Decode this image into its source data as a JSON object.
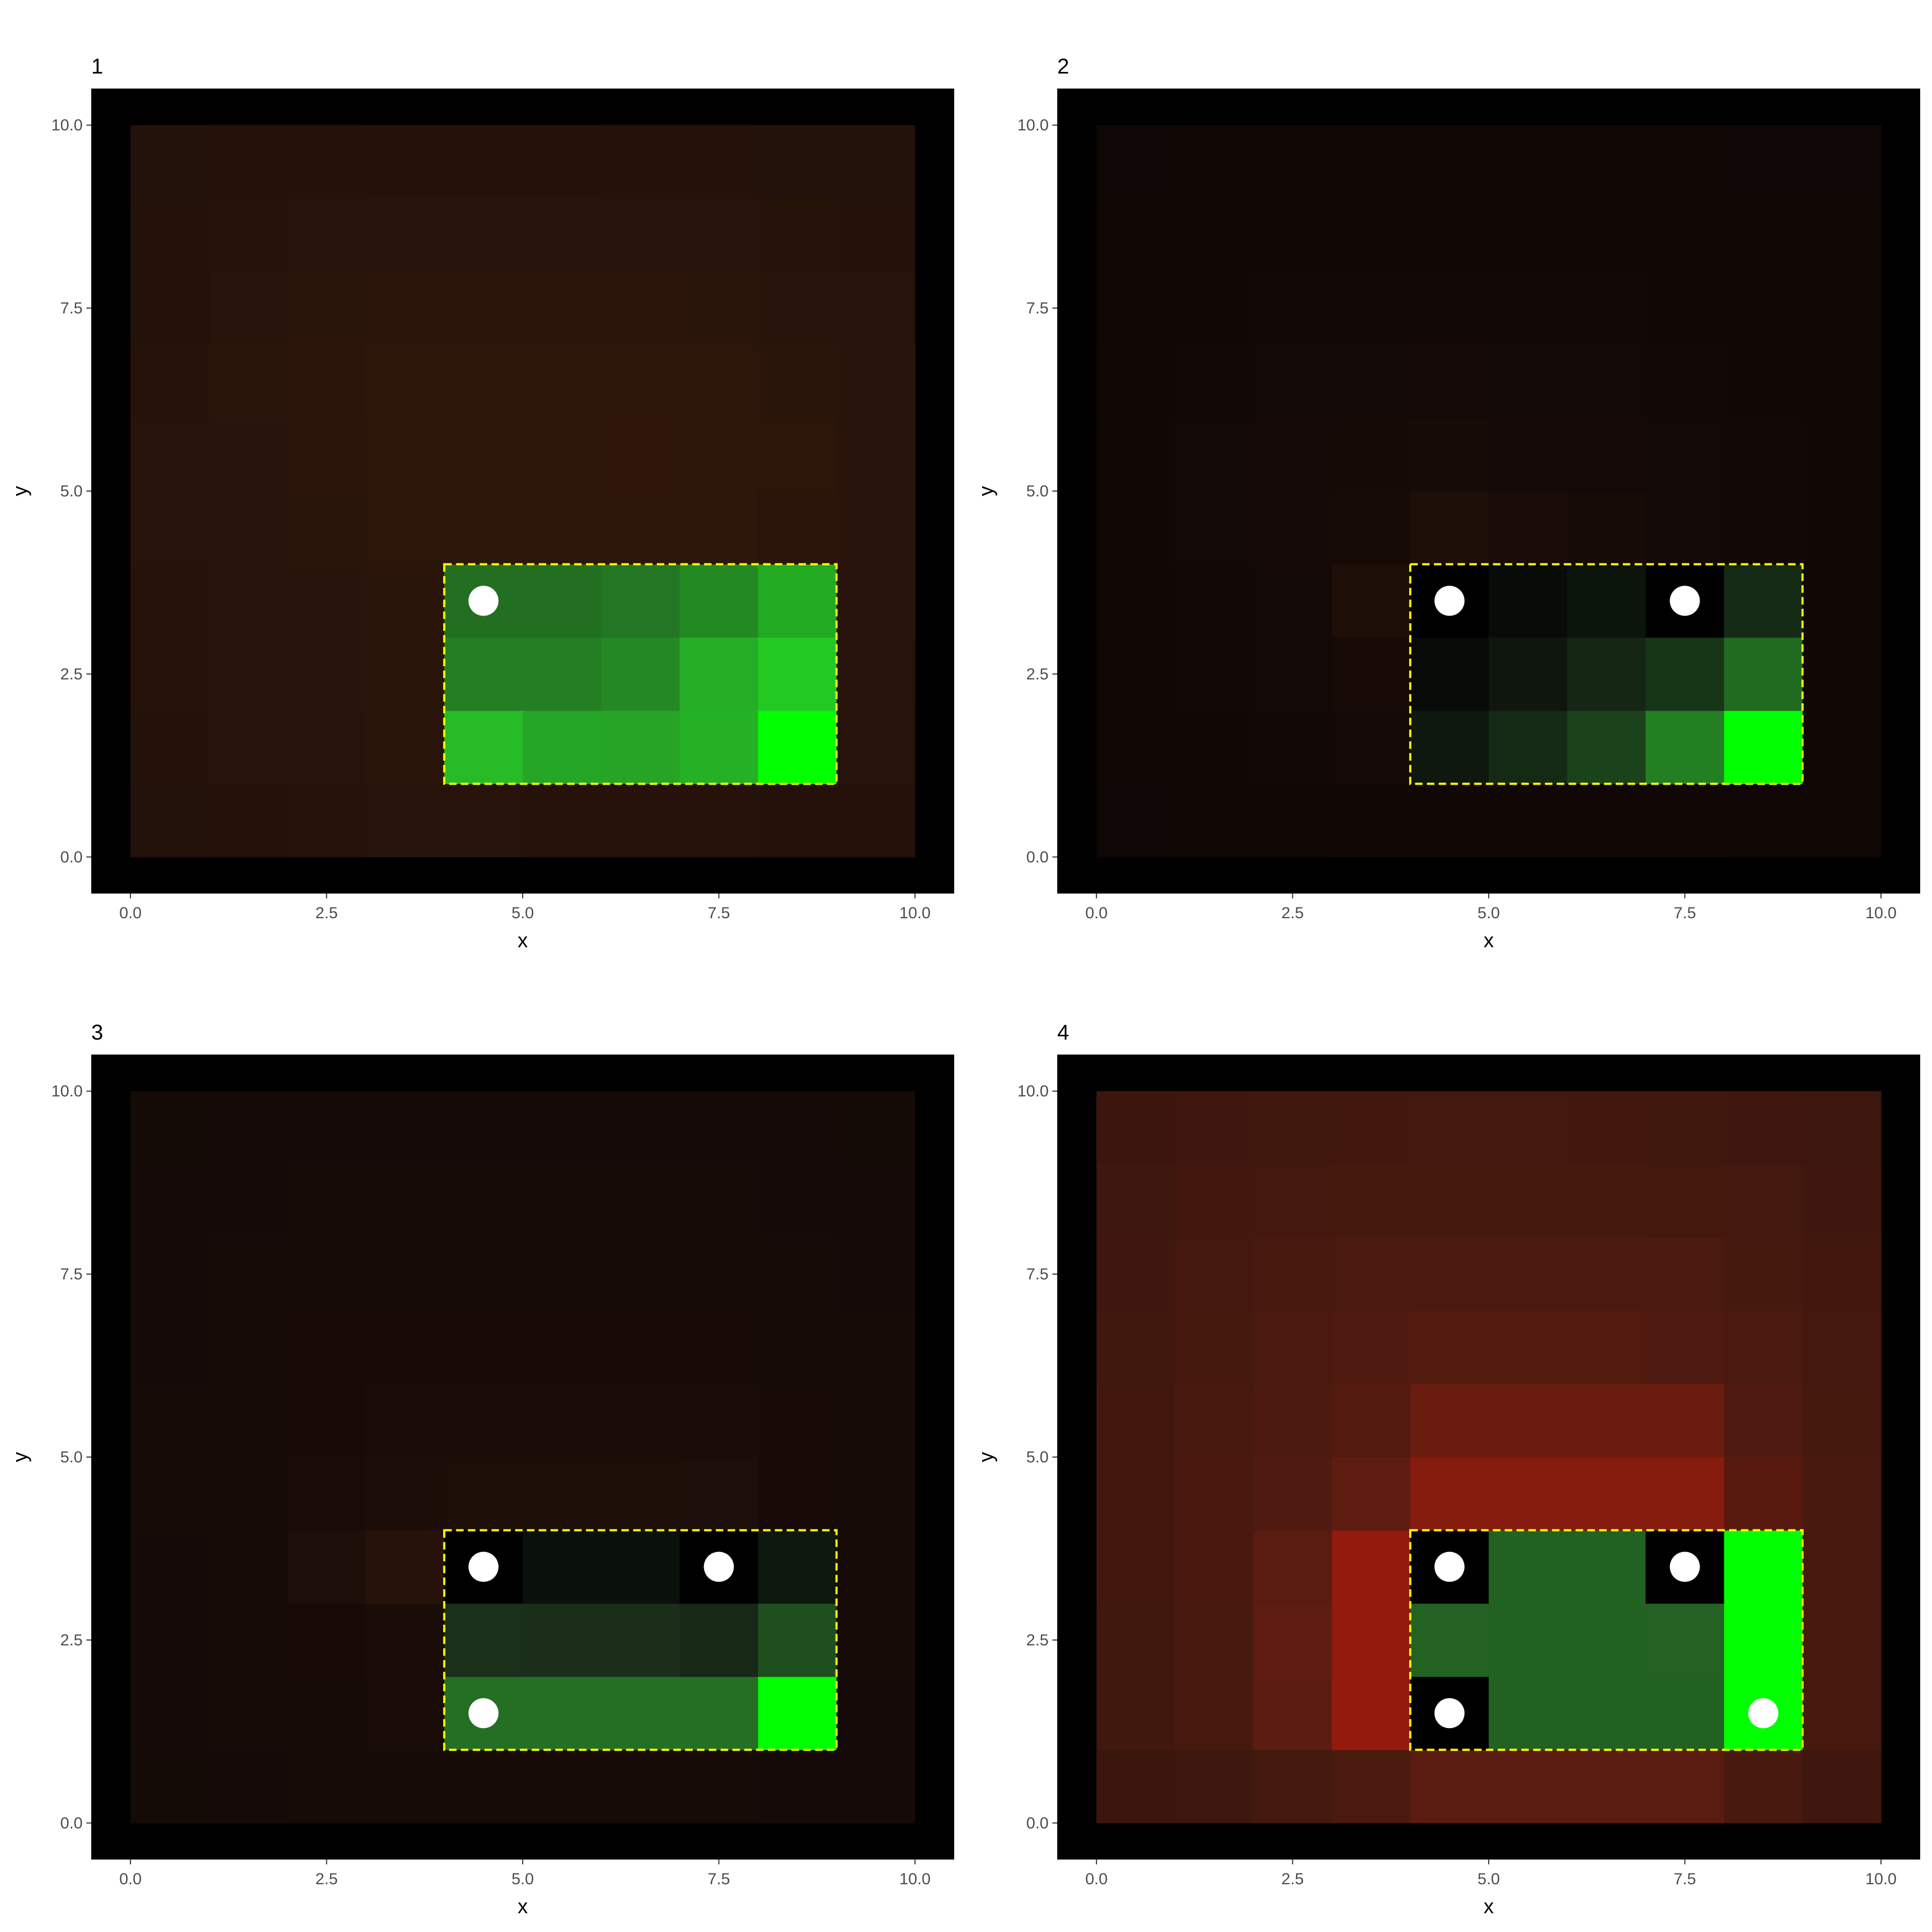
{
  "figure": {
    "background": "#ffffff",
    "panel_background": "#000000"
  },
  "chart_data": [
    {
      "type": "heatmap",
      "title": "1",
      "xlabel": "x",
      "ylabel": "y",
      "xlim": [
        -0.5,
        10.5
      ],
      "ylim": [
        -0.5,
        10.5
      ],
      "xticks": [
        "0.0",
        "2.5",
        "5.0",
        "7.5",
        "10.0"
      ],
      "yticks": [
        "0.0",
        "2.5",
        "5.0",
        "7.5",
        "10.0"
      ],
      "grid": false,
      "cell_colors": [
        [
          "#22110a",
          "#24120a",
          "#25130a",
          "#26130a",
          "#26130a",
          "#25130a",
          "#25120a",
          "#25130a",
          "#24120a",
          "#24120a"
        ],
        [
          "#24120a",
          "#26130a",
          "#27130a",
          "#2a150a",
          "#27bb27",
          "#26a626",
          "#26a426",
          "#25b125",
          "#00ff00",
          "#26130a"
        ],
        [
          "#25120a",
          "#27130a",
          "#28140a",
          "#2a150a",
          "#247e24",
          "#247f24",
          "#248924",
          "#25ad25",
          "#22c922",
          "#27130a"
        ],
        [
          "#25130a",
          "#27140a",
          "#28140a",
          "#2a150a",
          "#226f22",
          "#226f22",
          "#237623",
          "#238a23",
          "#22aa22",
          "#28140a"
        ],
        [
          "#26130a",
          "#27140a",
          "#29150a",
          "#2c160a",
          "#2d160a",
          "#2d160a",
          "#2d160a",
          "#2d160a",
          "#2b150a",
          "#28140a"
        ],
        [
          "#26130a",
          "#28140a",
          "#2b150a",
          "#2c160a",
          "#2d160a",
          "#2d160a",
          "#2e170a",
          "#2d160a",
          "#2c160a",
          "#28140a"
        ],
        [
          "#25130a",
          "#29150a",
          "#2b150a",
          "#2d160a",
          "#2d160a",
          "#2d160a",
          "#2d160a",
          "#2c160a",
          "#2a150a",
          "#27140a"
        ],
        [
          "#24120a",
          "#27140a",
          "#2a150a",
          "#2b150a",
          "#2b150a",
          "#2b150a",
          "#2b150a",
          "#2a150a",
          "#28140a",
          "#26130a"
        ],
        [
          "#24120a",
          "#25130a",
          "#26130a",
          "#27140a",
          "#28140a",
          "#28140a",
          "#27140a",
          "#26130a",
          "#25130a",
          "#24120a"
        ],
        [
          "#22110a",
          "#23110a",
          "#23110a",
          "#24120a",
          "#24120a",
          "#24120a",
          "#23110a",
          "#23110a",
          "#22110a",
          "#22110a"
        ]
      ],
      "highlight": {
        "x0": 4,
        "x1": 9,
        "y0": 1,
        "y1": 4,
        "color": "#ffff00"
      },
      "points": [
        {
          "x": 4.5,
          "y": 3.5
        }
      ]
    },
    {
      "type": "heatmap",
      "title": "2",
      "xlabel": "x",
      "ylabel": "y",
      "xlim": [
        -0.5,
        10.5
      ],
      "ylim": [
        -0.5,
        10.5
      ],
      "xticks": [
        "0.0",
        "2.5",
        "5.0",
        "7.5",
        "10.0"
      ],
      "yticks": [
        "0.0",
        "2.5",
        "5.0",
        "7.5",
        "10.0"
      ],
      "grid": false,
      "cell_colors": [
        [
          "#0f0705",
          "#100705",
          "#100705",
          "#110806",
          "#110806",
          "#110806",
          "#110806",
          "#110806",
          "#100705",
          "#100705"
        ],
        [
          "#100705",
          "#110806",
          "#120806",
          "#140906",
          "#0e180e",
          "#142a14",
          "#1b431b",
          "#228022",
          "#00ff00",
          "#110806"
        ],
        [
          "#100705",
          "#120806",
          "#130906",
          "#180b07",
          "#070a07",
          "#0e160e",
          "#152615",
          "#163616",
          "#216b21",
          "#110806"
        ],
        [
          "#110806",
          "#120806",
          "#130906",
          "#1d0e08",
          "#000000",
          "#070c07",
          "#0c150c",
          "#000000",
          "#142a14",
          "#110806"
        ],
        [
          "#110806",
          "#130906",
          "#150a07",
          "#170b07",
          "#1e0e08",
          "#190c07",
          "#170b07",
          "#130906",
          "#120806",
          "#110806"
        ],
        [
          "#110806",
          "#130906",
          "#140906",
          "#160a07",
          "#170b07",
          "#150a07",
          "#140906",
          "#130906",
          "#120806",
          "#110806"
        ],
        [
          "#110806",
          "#120806",
          "#130906",
          "#130906",
          "#140906",
          "#130906",
          "#130906",
          "#120806",
          "#110806",
          "#100705"
        ],
        [
          "#100705",
          "#110806",
          "#120806",
          "#120806",
          "#120806",
          "#120806",
          "#120806",
          "#110806",
          "#110806",
          "#100705"
        ],
        [
          "#100705",
          "#110806",
          "#110806",
          "#110806",
          "#110806",
          "#110806",
          "#110806",
          "#110806",
          "#100705",
          "#100705"
        ],
        [
          "#0f0705",
          "#100705",
          "#100705",
          "#100705",
          "#100705",
          "#100705",
          "#100705",
          "#100705",
          "#0f0705",
          "#0f0705"
        ]
      ],
      "highlight": {
        "x0": 4,
        "x1": 9,
        "y0": 1,
        "y1": 4,
        "color": "#ffff00"
      },
      "points": [
        {
          "x": 4.5,
          "y": 3.5
        },
        {
          "x": 7.5,
          "y": 3.5
        }
      ]
    },
    {
      "type": "heatmap",
      "title": "3",
      "xlabel": "x",
      "ylabel": "y",
      "xlim": [
        -0.5,
        10.5
      ],
      "ylim": [
        -0.5,
        10.5
      ],
      "xticks": [
        "0.0",
        "2.5",
        "5.0",
        "7.5",
        "10.0"
      ],
      "yticks": [
        "0.0",
        "2.5",
        "5.0",
        "7.5",
        "10.0"
      ],
      "grid": false,
      "cell_colors": [
        [
          "#140a06",
          "#150a07",
          "#160b07",
          "#160b07",
          "#170b07",
          "#170b07",
          "#170b07",
          "#160b07",
          "#150a07",
          "#150a07"
        ],
        [
          "#150a07",
          "#160b07",
          "#170b07",
          "#190c07",
          "#236f23",
          "#246f24",
          "#246f24",
          "#246f24",
          "#00ff00",
          "#150a07"
        ],
        [
          "#150a07",
          "#160b07",
          "#180b07",
          "#1a0d08",
          "#1a301a",
          "#1a2e1a",
          "#1a2e1a",
          "#172817",
          "#1f4f1f",
          "#160b07"
        ],
        [
          "#150a07",
          "#170b07",
          "#1c0e08",
          "#261209",
          "#000000",
          "#0a110a",
          "#0a110a",
          "#000000",
          "#0e180e",
          "#160b07"
        ],
        [
          "#160b07",
          "#170b07",
          "#190c07",
          "#1b0d08",
          "#1e0e08",
          "#1e0e08",
          "#1e0e08",
          "#1c0e08",
          "#180b07",
          "#170b07"
        ],
        [
          "#160b07",
          "#170b07",
          "#180b07",
          "#1a0d08",
          "#1a0d08",
          "#1a0d08",
          "#1a0d08",
          "#190c07",
          "#180b07",
          "#170b07"
        ],
        [
          "#150a07",
          "#170b07",
          "#180b07",
          "#180b07",
          "#180b07",
          "#180b07",
          "#180b07",
          "#180b07",
          "#170b07",
          "#160b07"
        ],
        [
          "#150a07",
          "#160b07",
          "#170b07",
          "#170b07",
          "#170b07",
          "#170b07",
          "#170b07",
          "#170b07",
          "#160b07",
          "#150a07"
        ],
        [
          "#150a07",
          "#150a07",
          "#160b07",
          "#160b07",
          "#160b07",
          "#160b07",
          "#160b07",
          "#160b07",
          "#150a07",
          "#150a07"
        ],
        [
          "#140a06",
          "#150a07",
          "#150a07",
          "#150a07",
          "#150a07",
          "#150a07",
          "#150a07",
          "#150a07",
          "#150a07",
          "#140a06"
        ]
      ],
      "highlight": {
        "x0": 4,
        "x1": 9,
        "y0": 1,
        "y1": 4,
        "color": "#ffff00"
      },
      "points": [
        {
          "x": 4.5,
          "y": 3.5
        },
        {
          "x": 7.5,
          "y": 3.5
        },
        {
          "x": 4.5,
          "y": 1.5
        }
      ]
    },
    {
      "type": "heatmap",
      "title": "4",
      "xlabel": "x",
      "ylabel": "y",
      "xlim": [
        -0.5,
        10.5
      ],
      "ylim": [
        -0.5,
        10.5
      ],
      "xticks": [
        "0.0",
        "2.5",
        "5.0",
        "7.5",
        "10.0"
      ],
      "yticks": [
        "0.0",
        "2.5",
        "5.0",
        "7.5",
        "10.0"
      ],
      "grid": false,
      "cell_colors": [
        [
          "#3b160d",
          "#3e170e",
          "#43180e",
          "#4a1a0f",
          "#5a1c10",
          "#5a1c10",
          "#5a1c10",
          "#5a1c10",
          "#48190e",
          "#3f170e"
        ],
        [
          "#41180e",
          "#47190f",
          "#5c1d10",
          "#931a0d",
          "#000000",
          "#216121",
          "#216121",
          "#216121",
          "#00ff00",
          "#47190f"
        ],
        [
          "#41180e",
          "#48190f",
          "#5e1d10",
          "#931a0d",
          "#236223",
          "#216121",
          "#216121",
          "#236223",
          "#00ff00",
          "#48190f"
        ],
        [
          "#42180e",
          "#49190f",
          "#5a1c10",
          "#931a0d",
          "#000000",
          "#216121",
          "#216121",
          "#000000",
          "#00ff00",
          "#48190f"
        ],
        [
          "#42180e",
          "#49190f",
          "#4f1a0f",
          "#5e1d10",
          "#861c0e",
          "#861c0e",
          "#861c0e",
          "#861c0e",
          "#57190e",
          "#47190f"
        ],
        [
          "#42180e",
          "#48190f",
          "#4d1a0f",
          "#531b0f",
          "#6a1c0f",
          "#6a1c0f",
          "#6a1c0f",
          "#6a1c0f",
          "#4f1a0f",
          "#46190f"
        ],
        [
          "#41180e",
          "#46190f",
          "#4b1a0f",
          "#4f1a0f",
          "#521b0f",
          "#521b0f",
          "#521b0f",
          "#4f1a0f",
          "#4a1a0f",
          "#44180e"
        ],
        [
          "#40170e",
          "#44180e",
          "#48190f",
          "#4a1a0f",
          "#4b1a0f",
          "#4b1a0f",
          "#4b1a0f",
          "#4a1a0f",
          "#46190f",
          "#42180e"
        ],
        [
          "#3e170e",
          "#42180e",
          "#44180e",
          "#46190f",
          "#46190f",
          "#46190f",
          "#46190f",
          "#45180e",
          "#43180e",
          "#40170e"
        ],
        [
          "#3c160d",
          "#3f170e",
          "#41180e",
          "#42180e",
          "#43180e",
          "#43180e",
          "#42180e",
          "#41180e",
          "#3f170e",
          "#3d160d"
        ]
      ],
      "highlight": {
        "x0": 4,
        "x1": 9,
        "y0": 1,
        "y1": 4,
        "color": "#ffff00"
      },
      "points": [
        {
          "x": 4.5,
          "y": 3.5
        },
        {
          "x": 7.5,
          "y": 3.5
        },
        {
          "x": 4.5,
          "y": 1.5
        },
        {
          "x": 8.5,
          "y": 1.5
        }
      ]
    }
  ]
}
